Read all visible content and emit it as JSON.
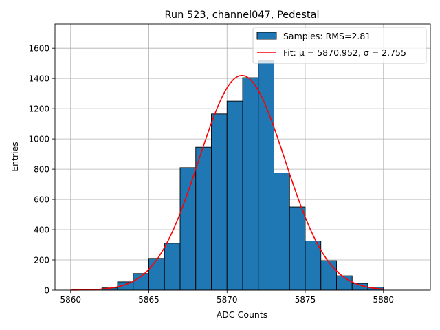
{
  "chart_data": {
    "type": "bar",
    "title": "Run 523, channel047, Pedestal",
    "xlabel": "ADC Counts",
    "ylabel": "Entries",
    "xlim": [
      5859,
      5883
    ],
    "ylim": [
      0,
      1760
    ],
    "xticks": [
      5860,
      5865,
      5870,
      5875,
      5880
    ],
    "yticks": [
      0,
      200,
      400,
      600,
      800,
      1000,
      1200,
      1400,
      1600
    ],
    "grid": true,
    "legend_position": "top-right",
    "histogram": {
      "name": "Samples: RMS=2.81",
      "color": "#1f77b4",
      "bin_edges": [
        5862,
        5863,
        5864,
        5865,
        5866,
        5867,
        5868,
        5869,
        5870,
        5871,
        5872,
        5873,
        5874,
        5875,
        5876,
        5877,
        5878,
        5879,
        5880
      ],
      "values": [
        15,
        55,
        110,
        210,
        310,
        810,
        945,
        1165,
        1250,
        1405,
        1520,
        775,
        550,
        325,
        195,
        95,
        45,
        20
      ]
    },
    "fit": {
      "name": "Fit: μ = 5870.952, σ = 2.755",
      "color": "#ff0000",
      "mu": 5870.952,
      "sigma": 2.755,
      "amplitude": 1420,
      "x_range": [
        5860,
        5880
      ]
    }
  }
}
